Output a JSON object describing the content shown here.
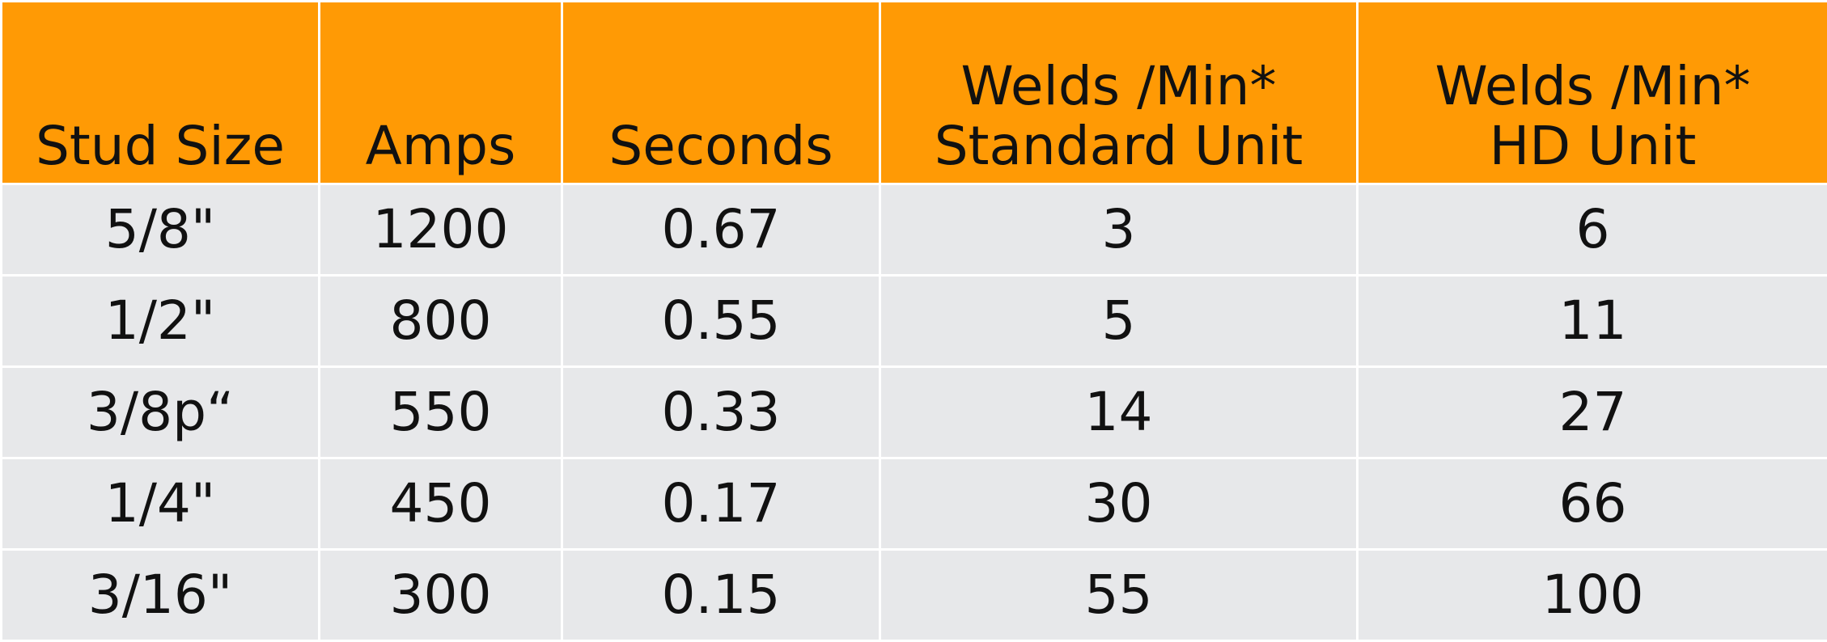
{
  "table": {
    "header": [
      [
        "Stud Size"
      ],
      [
        "Amps"
      ],
      [
        "Seconds"
      ],
      [
        "Welds /Min*",
        "Standard Unit"
      ],
      [
        "Welds /Min*",
        "HD Unit"
      ]
    ],
    "rows": [
      [
        "5/8\"",
        "1200",
        "0.67",
        "3",
        "6"
      ],
      [
        "1/2\"",
        "800",
        "0.55",
        "5",
        "11"
      ],
      [
        "3/8p“",
        "550",
        "0.33",
        "14",
        "27"
      ],
      [
        "1/4\"",
        "450",
        "0.17",
        "30",
        "66"
      ],
      [
        "3/16\"",
        "300",
        "0.15",
        "55",
        "100"
      ]
    ]
  }
}
